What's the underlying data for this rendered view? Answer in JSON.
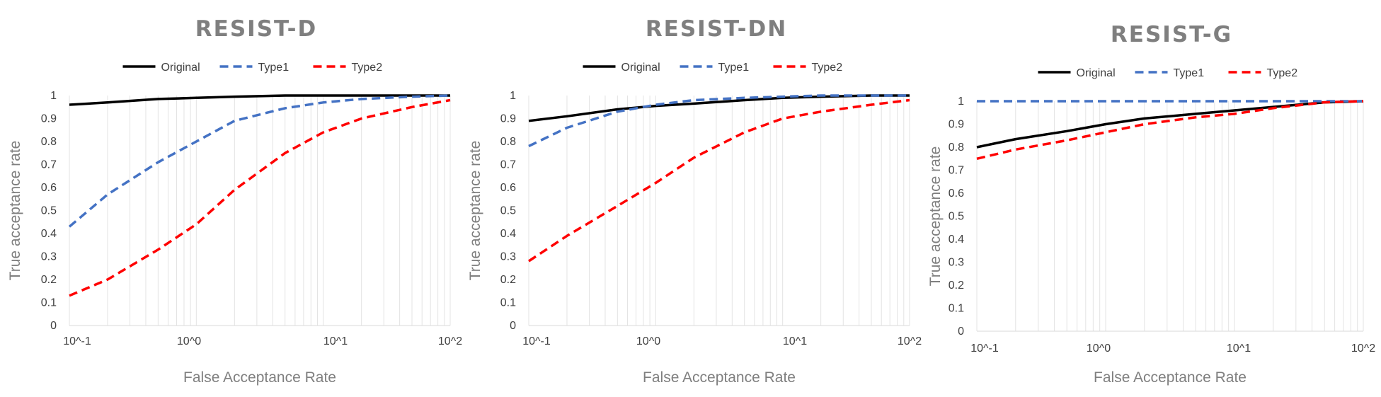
{
  "chart_data": [
    {
      "type": "line",
      "title": "RESIST-D",
      "xlabel": "False Acceptance Rate",
      "ylabel": "True acceptance rate",
      "x_scale": "log",
      "xlim": [
        0.1,
        100
      ],
      "ylim": [
        0,
        1
      ],
      "x_tick_labels": [
        "10^-1",
        "10^0",
        "10^1",
        "10^2"
      ],
      "y_tick_labels": [
        "0",
        "0.1",
        "0.2",
        "0.3",
        "0.4",
        "0.5",
        "0.6",
        "0.7",
        "0.8",
        "0.9",
        "1"
      ],
      "grid": "vertical",
      "legend": "top-center",
      "series": [
        {
          "name": "Original",
          "style": "solid",
          "color": "#000000",
          "x": [
            0.1,
            0.2,
            0.5,
            1,
            2,
            5,
            10,
            20,
            50,
            100
          ],
          "y": [
            0.96,
            0.97,
            0.985,
            0.99,
            0.995,
            1,
            1,
            1,
            1,
            1
          ]
        },
        {
          "name": "Type1",
          "style": "dashed",
          "color": "#4472c4",
          "x": [
            0.1,
            0.2,
            0.5,
            1,
            2,
            5,
            10,
            20,
            50,
            100
          ],
          "y": [
            0.43,
            0.57,
            0.71,
            0.8,
            0.89,
            0.945,
            0.97,
            0.985,
            0.995,
            1
          ]
        },
        {
          "name": "Type2",
          "style": "dashed",
          "color": "#ff0000",
          "x": [
            0.1,
            0.2,
            0.5,
            1,
            2,
            5,
            10,
            20,
            50,
            100
          ],
          "y": [
            0.13,
            0.2,
            0.33,
            0.44,
            0.59,
            0.75,
            0.84,
            0.9,
            0.95,
            0.98
          ]
        }
      ]
    },
    {
      "type": "line",
      "title": "RESIST-DN",
      "xlabel": "False Acceptance Rate",
      "ylabel": "True acceptance rate",
      "x_scale": "log",
      "xlim": [
        0.1,
        100
      ],
      "ylim": [
        0,
        1
      ],
      "x_tick_labels": [
        "10^-1",
        "10^0",
        "10^1",
        "10^2"
      ],
      "y_tick_labels": [
        "0",
        "0.1",
        "0.2",
        "0.3",
        "0.4",
        "0.5",
        "0.6",
        "0.7",
        "0.8",
        "0.9",
        "1"
      ],
      "grid": "vertical",
      "legend": "top-center",
      "series": [
        {
          "name": "Original",
          "style": "solid",
          "color": "#000000",
          "x": [
            0.1,
            0.2,
            0.5,
            1,
            2,
            5,
            10,
            20,
            50,
            100
          ],
          "y": [
            0.89,
            0.91,
            0.94,
            0.955,
            0.965,
            0.98,
            0.99,
            0.995,
            1,
            1
          ]
        },
        {
          "name": "Type1",
          "style": "dashed",
          "color": "#4472c4",
          "x": [
            0.1,
            0.2,
            0.5,
            1,
            2,
            5,
            10,
            20,
            50,
            100
          ],
          "y": [
            0.78,
            0.86,
            0.93,
            0.96,
            0.98,
            0.99,
            0.995,
            1,
            1,
            1
          ]
        },
        {
          "name": "Type2",
          "style": "dashed",
          "color": "#ff0000",
          "x": [
            0.1,
            0.2,
            0.5,
            1,
            2,
            5,
            10,
            20,
            50,
            100
          ],
          "y": [
            0.28,
            0.39,
            0.52,
            0.62,
            0.73,
            0.84,
            0.9,
            0.93,
            0.96,
            0.98
          ]
        }
      ]
    },
    {
      "type": "line",
      "title": "RESIST-G",
      "xlabel": "False Acceptance Rate",
      "ylabel": "True acceptance rate",
      "x_scale": "log",
      "xlim": [
        0.1,
        100
      ],
      "ylim": [
        0,
        1
      ],
      "x_tick_labels": [
        "10^-1",
        "10^0",
        "10^1",
        "10^2"
      ],
      "y_tick_labels": [
        "0",
        "0.1",
        "0.2",
        "0.3",
        "0.4",
        "0.5",
        "0.6",
        "0.7",
        "0.8",
        "0.9",
        "1"
      ],
      "grid": "vertical",
      "legend": "top-center",
      "series": [
        {
          "name": "Original",
          "style": "solid",
          "color": "#000000",
          "x": [
            0.1,
            0.2,
            0.5,
            1,
            2,
            5,
            10,
            20,
            50,
            100
          ],
          "y": [
            0.8,
            0.835,
            0.87,
            0.9,
            0.925,
            0.945,
            0.96,
            0.975,
            0.995,
            1
          ]
        },
        {
          "name": "Type1",
          "style": "dashed",
          "color": "#4472c4",
          "x": [
            0.1,
            1,
            10,
            100
          ],
          "y": [
            1,
            1,
            1,
            1
          ]
        },
        {
          "name": "Type2",
          "style": "dashed",
          "color": "#ff0000",
          "x": [
            0.1,
            0.2,
            0.5,
            1,
            2,
            5,
            10,
            20,
            50,
            100
          ],
          "y": [
            0.75,
            0.79,
            0.83,
            0.865,
            0.9,
            0.93,
            0.945,
            0.97,
            0.995,
            1
          ]
        }
      ]
    }
  ]
}
